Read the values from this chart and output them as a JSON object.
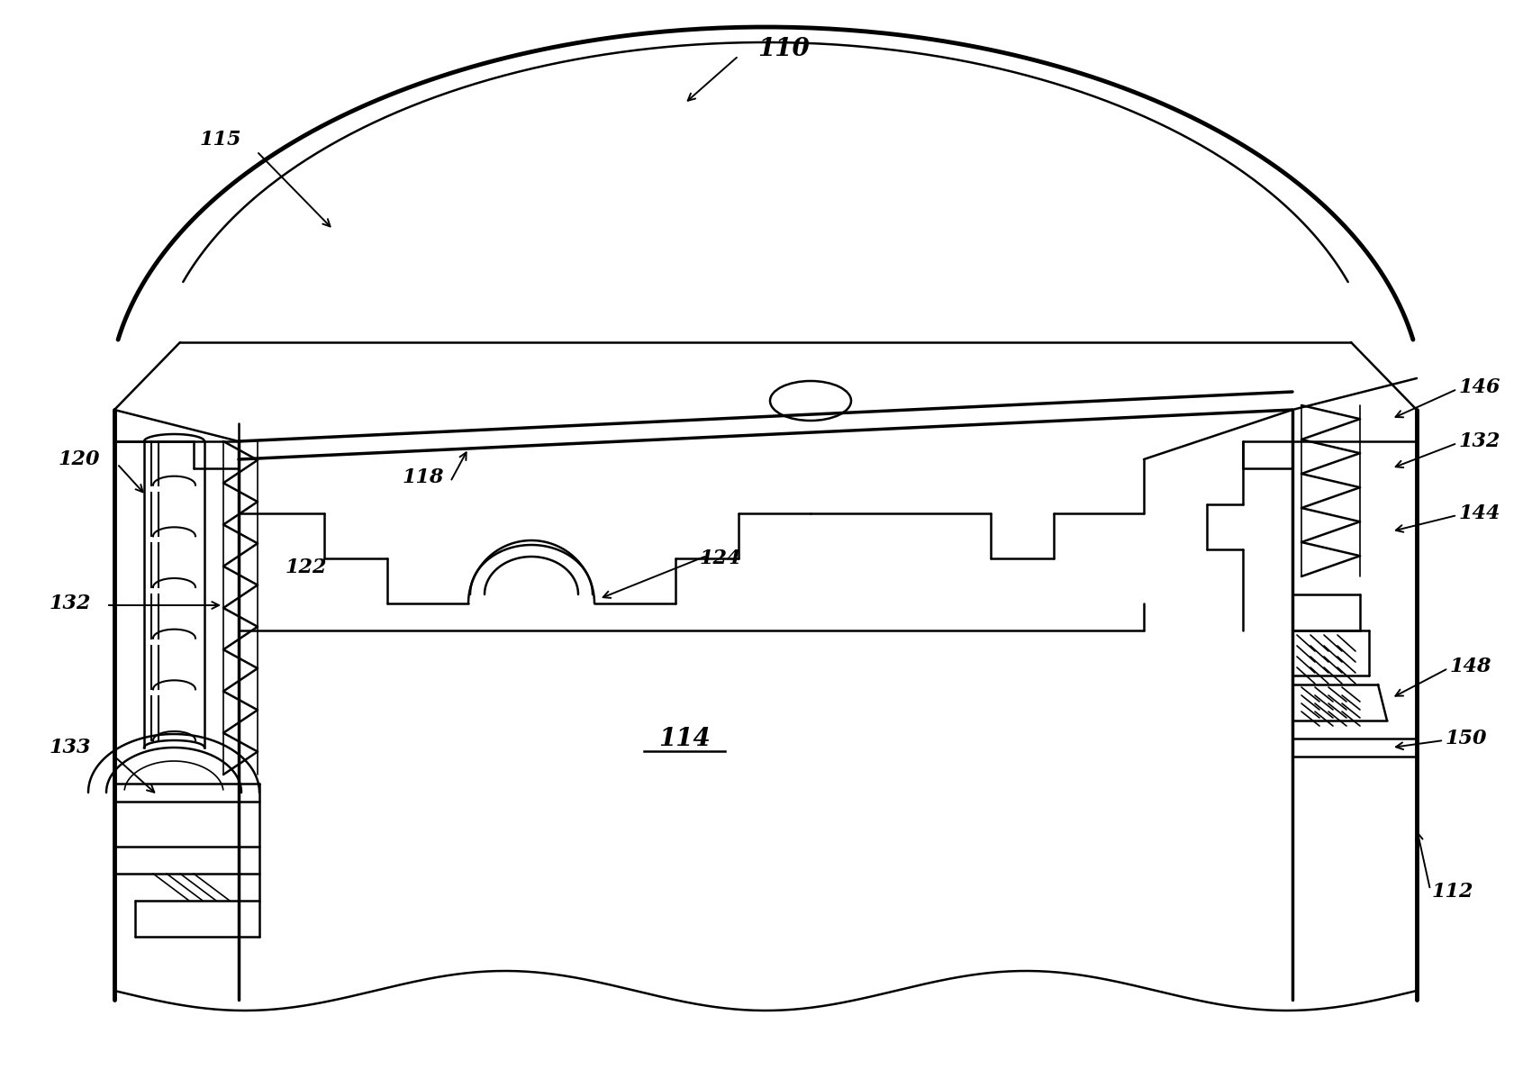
{
  "bg": "#ffffff",
  "lc": "#000000",
  "figsize": [
    17.01,
    12.08
  ],
  "dpi": 100,
  "lw_ultra": 3.5,
  "lw_thick": 2.5,
  "lw_med": 1.8,
  "lw_thin": 1.2,
  "label_fs": 16,
  "label_fs_big": 20
}
